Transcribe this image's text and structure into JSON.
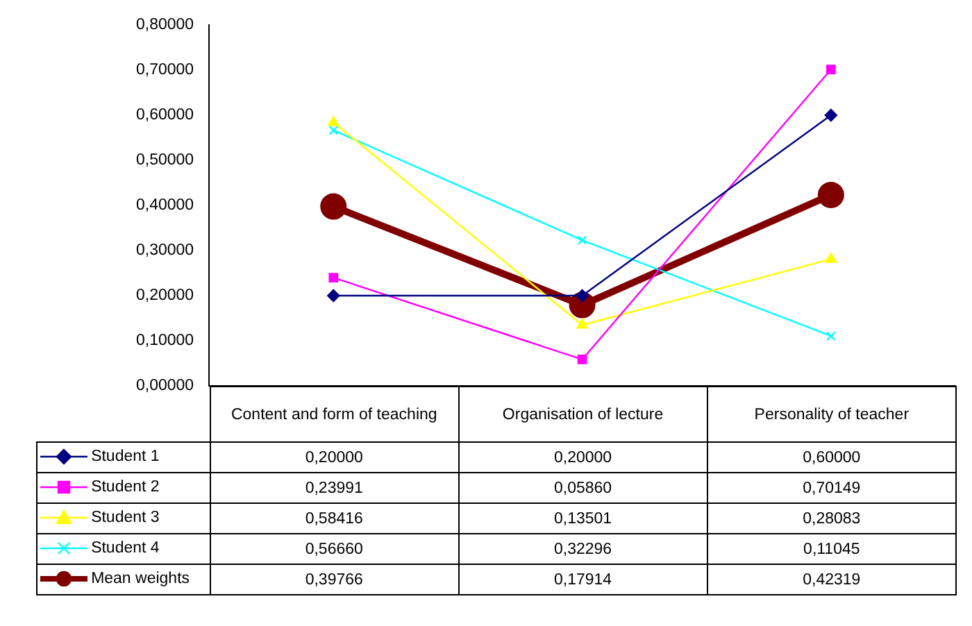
{
  "chart_data": {
    "type": "line",
    "categories": [
      "Content and form of teaching",
      "Organisation of lecture",
      "Personality of teacher"
    ],
    "ylim": [
      0,
      0.8
    ],
    "yticks": [
      {
        "value": 0,
        "label": "0,00000"
      },
      {
        "value": 0.1,
        "label": "0,10000"
      },
      {
        "value": 0.2,
        "label": "0,20000"
      },
      {
        "value": 0.3,
        "label": "0,30000"
      },
      {
        "value": 0.4,
        "label": "0,40000"
      },
      {
        "value": 0.5,
        "label": "0,50000"
      },
      {
        "value": 0.6,
        "label": "0,60000"
      },
      {
        "value": 0.7,
        "label": "0,70000"
      },
      {
        "value": 0.8,
        "label": "0,80000"
      }
    ],
    "grid": false,
    "legend": "bottom left",
    "series": [
      {
        "name": "Student 1",
        "color": "#000080",
        "marker": "diamond",
        "values": [
          0.2,
          0.2,
          0.6
        ],
        "value_labels": [
          "0,20000",
          "0,20000",
          "0,60000"
        ]
      },
      {
        "name": "Student 2",
        "color": "#ff00ff",
        "marker": "square",
        "values": [
          0.23991,
          0.0586,
          0.70149
        ],
        "value_labels": [
          "0,23991",
          "0,05860",
          "0,70149"
        ]
      },
      {
        "name": "Student 3",
        "color": "#ffff00",
        "marker": "triangle",
        "values": [
          0.58416,
          0.13501,
          0.28083
        ],
        "value_labels": [
          "0,58416",
          "0,13501",
          "0,28083"
        ]
      },
      {
        "name": "Student 4",
        "color": "#00ffff",
        "marker": "cross",
        "values": [
          0.5666,
          0.32296,
          0.11045
        ],
        "value_labels": [
          "0,56660",
          "0,32296",
          "0,11045"
        ]
      },
      {
        "name": "Mean weights",
        "color": "#800000",
        "marker": "circle",
        "values": [
          0.39766,
          0.17914,
          0.42319
        ],
        "value_labels": [
          "0,39766",
          "0,17914",
          "0,42319"
        ]
      }
    ]
  }
}
